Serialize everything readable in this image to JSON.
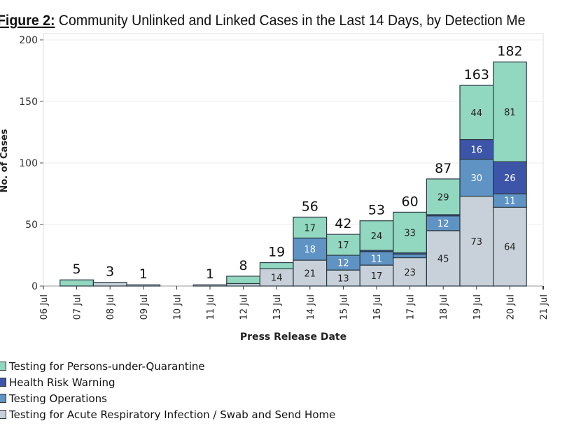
{
  "title": {
    "prefix": "Figure 2:",
    "text": " Community Unlinked and Linked Cases in the Last 14 Days, by Detection Me"
  },
  "chart_data": {
    "type": "bar",
    "stacked": true,
    "xlabel": "Press Release Date",
    "ylabel": "No. of Cases",
    "ylim": [
      0,
      200
    ],
    "yticks": [
      0,
      50,
      100,
      150,
      200
    ],
    "categories": [
      "06 Jul",
      "07 Jul",
      "08 Jul",
      "09 Jul",
      "10 Jul",
      "11 Jul",
      "12 Jul",
      "13 Jul",
      "14 Jul",
      "15 Jul",
      "16 Jul",
      "17 Jul",
      "18 Jul",
      "19 Jul",
      "20 Jul",
      "21 Jul"
    ],
    "totals": [
      0,
      5,
      3,
      1,
      0,
      1,
      8,
      19,
      56,
      42,
      53,
      60,
      87,
      163,
      182,
      null
    ],
    "series": [
      {
        "name": "Testing for Acute Respiratory Infection / Swab and Send Home",
        "color": "#c8d1d9",
        "label_color": "#222",
        "values": [
          0,
          0,
          3,
          1,
          0,
          1,
          2,
          14,
          21,
          13,
          17,
          23,
          45,
          73,
          64,
          0
        ]
      },
      {
        "name": "Testing Operations",
        "color": "#5f93c4",
        "label_color": "#fff",
        "values": [
          0,
          0,
          0,
          0,
          0,
          0,
          0,
          0,
          18,
          12,
          11,
          3,
          12,
          30,
          11,
          0
        ]
      },
      {
        "name": "Health Risk Warning",
        "color": "#3d55a8",
        "label_color": "#fff",
        "values": [
          0,
          0,
          0,
          0,
          0,
          0,
          0,
          0,
          0,
          0,
          1,
          1,
          1,
          16,
          26,
          0
        ]
      },
      {
        "name": "Testing for Persons-under-Quarantine",
        "color": "#92d7bf",
        "label_color": "#222",
        "values": [
          0,
          5,
          0,
          0,
          0,
          0,
          6,
          5,
          17,
          17,
          24,
          33,
          29,
          44,
          81,
          0
        ]
      }
    ],
    "legend_order": [
      3,
      2,
      1,
      0
    ],
    "legend_position": "bottom-left",
    "grid": true
  }
}
